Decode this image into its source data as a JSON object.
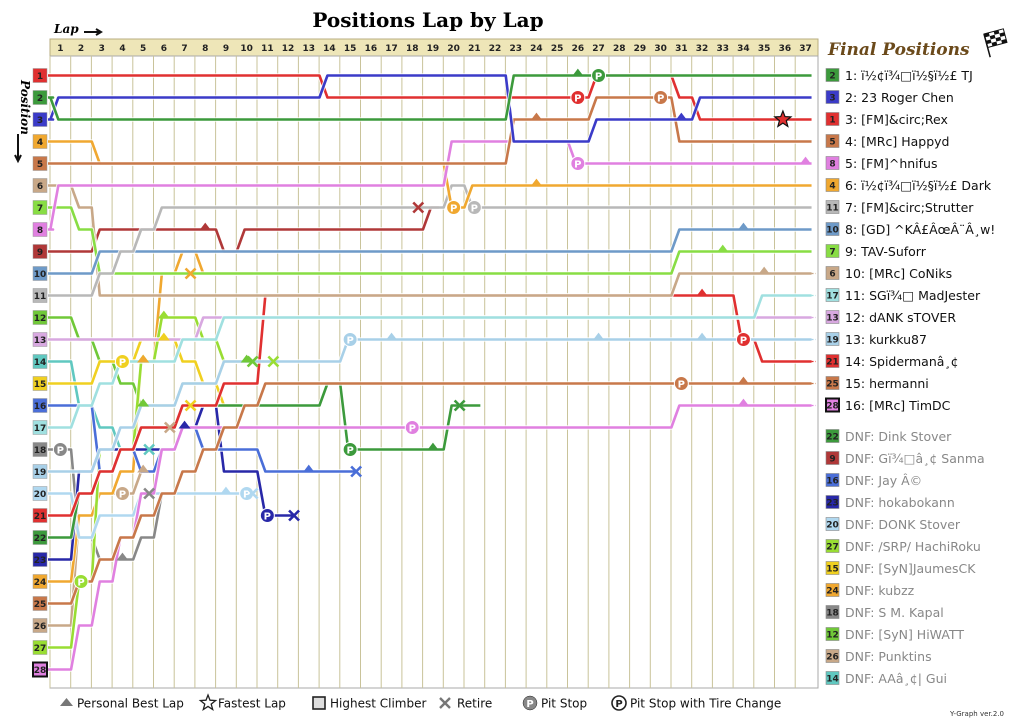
{
  "chart_data": {
    "type": "line",
    "title": "Positions Lap by Lap",
    "xlabel": "Lap",
    "ylabel": "Position",
    "laps": [
      1,
      2,
      3,
      4,
      5,
      6,
      7,
      8,
      9,
      10,
      11,
      12,
      13,
      14,
      15,
      16,
      17,
      18,
      19,
      20,
      21,
      22,
      23,
      24,
      25,
      26,
      27,
      28,
      29,
      30,
      31,
      32,
      33,
      34,
      35,
      36,
      37
    ],
    "positions": [
      1,
      2,
      3,
      4,
      5,
      6,
      7,
      8,
      9,
      10,
      11,
      12,
      13,
      14,
      15,
      16,
      17,
      18,
      19,
      20,
      21,
      22,
      23,
      24,
      25,
      26,
      27,
      28
    ],
    "final_positions_title": "Final Positions",
    "series": [
      {
        "start": 2,
        "color": "#3c9a3c",
        "label": "1: ï½¢ï¾□ï½§ï½£ TJ",
        "pos": [
          3,
          3,
          3,
          3,
          3,
          3,
          3,
          3,
          3,
          3,
          3,
          3,
          3,
          3,
          3,
          3,
          3,
          3,
          3,
          3,
          3,
          3,
          1,
          1,
          1,
          1,
          1,
          1,
          1,
          1,
          1,
          1,
          1,
          1,
          1,
          1,
          1
        ],
        "pit": [
          27
        ],
        "pbl": [
          26
        ]
      },
      {
        "start": 3,
        "color": "#3b3bc8",
        "label": "2: 23 Roger Chen",
        "pos": [
          2,
          2,
          2,
          2,
          2,
          2,
          2,
          2,
          2,
          2,
          2,
          2,
          2,
          1,
          1,
          1,
          1,
          1,
          1,
          1,
          1,
          1,
          4,
          4,
          4,
          4,
          3,
          3,
          3,
          3,
          3,
          2,
          2,
          2,
          2,
          2,
          2
        ],
        "pbl": [
          31
        ]
      },
      {
        "start": 1,
        "color": "#e03030",
        "label": "3: [FM]&circ;Rex",
        "pos": [
          1,
          1,
          1,
          1,
          1,
          1,
          1,
          1,
          1,
          1,
          1,
          1,
          1,
          2,
          2,
          2,
          2,
          2,
          2,
          2,
          2,
          2,
          2,
          2,
          2,
          2,
          1,
          1,
          1,
          1,
          2,
          3,
          3,
          3,
          3,
          3,
          3
        ],
        "pit": [
          26
        ],
        "fastest": [
          36
        ]
      },
      {
        "start": 5,
        "color": "#c8784a",
        "label": "4: [MRc] Happyd",
        "pos": [
          5,
          5,
          5,
          5,
          5,
          5,
          5,
          5,
          5,
          5,
          5,
          5,
          5,
          5,
          5,
          5,
          5,
          5,
          5,
          5,
          5,
          5,
          3,
          3,
          3,
          3,
          2,
          2,
          2,
          2,
          4,
          4,
          4,
          4,
          4,
          4,
          4
        ],
        "pit": [
          30
        ],
        "pbl": [
          24
        ]
      },
      {
        "start": 8,
        "color": "#e080e0",
        "label": "5: [FM]^hnifus",
        "pos": [
          6,
          6,
          6,
          6,
          6,
          6,
          6,
          6,
          6,
          6,
          6,
          6,
          6,
          6,
          6,
          6,
          6,
          6,
          6,
          4,
          4,
          4,
          4,
          4,
          4,
          5,
          5,
          5,
          5,
          5,
          5,
          5,
          5,
          5,
          5,
          5,
          5
        ],
        "pit": [
          26
        ],
        "pbl": [
          37
        ]
      },
      {
        "start": 4,
        "color": "#f0a830",
        "label": "6: ï½¢ï¾□ï½§ï½£ Dark",
        "pos": [
          4,
          4,
          5,
          5,
          5,
          5,
          5,
          5,
          5,
          5,
          5,
          5,
          5,
          5,
          5,
          5,
          5,
          5,
          5,
          7,
          6,
          6,
          6,
          6,
          6,
          6,
          6,
          6,
          6,
          6,
          6,
          6,
          6,
          6,
          6,
          6,
          6
        ],
        "pit": [
          20
        ],
        "pbl": [
          24
        ]
      },
      {
        "start": 11,
        "color": "#b8b8b8",
        "label": "7: [FM]&circ;Strutter",
        "pos": [
          11,
          11,
          10,
          9,
          8,
          7,
          7,
          7,
          7,
          7,
          7,
          7,
          7,
          7,
          7,
          7,
          7,
          7,
          7,
          6,
          7,
          7,
          7,
          7,
          7,
          7,
          7,
          7,
          7,
          7,
          7,
          7,
          7,
          7,
          7,
          7,
          7
        ],
        "pit": [
          21
        ]
      },
      {
        "start": 10,
        "color": "#6e9ac8",
        "label": "8: [GD] ^KÂ£ÂœÂ¨Â¸w!",
        "pos": [
          10,
          10,
          9,
          9,
          9,
          9,
          9,
          9,
          9,
          9,
          9,
          9,
          9,
          9,
          9,
          9,
          9,
          9,
          9,
          9,
          9,
          9,
          9,
          9,
          9,
          9,
          9,
          9,
          9,
          9,
          8,
          8,
          8,
          8,
          8,
          8,
          8
        ],
        "pbl": [
          34
        ]
      },
      {
        "start": 7,
        "color": "#88dd44",
        "label": "9: TAV-Suforr",
        "pos": [
          7,
          8,
          10,
          10,
          10,
          10,
          10,
          10,
          10,
          10,
          10,
          10,
          10,
          10,
          10,
          10,
          10,
          10,
          10,
          10,
          10,
          10,
          10,
          10,
          10,
          10,
          10,
          10,
          10,
          10,
          9,
          9,
          9,
          9,
          9,
          9,
          9
        ],
        "pbl": [
          33
        ]
      },
      {
        "start": 6,
        "color": "#c8a888",
        "label": "10: [MRc] CoNiks",
        "pos": [
          6,
          7,
          11,
          11,
          11,
          11,
          11,
          11,
          11,
          11,
          11,
          11,
          11,
          11,
          11,
          11,
          11,
          11,
          11,
          11,
          11,
          11,
          11,
          11,
          11,
          11,
          11,
          11,
          11,
          11,
          10,
          10,
          10,
          10,
          10,
          10,
          10
        ],
        "pbl": [
          35
        ],
        "dnf_tail": true
      },
      {
        "start": 17,
        "color": "#a0e0e0",
        "label": "11: SGï¾□ MadJester",
        "pos": [
          17,
          16,
          15,
          14,
          14,
          14,
          13,
          13,
          12,
          12,
          12,
          12,
          12,
          12,
          12,
          12,
          12,
          12,
          12,
          12,
          12,
          12,
          12,
          12,
          12,
          12,
          12,
          12,
          12,
          12,
          12,
          12,
          12,
          12,
          11,
          11,
          11
        ],
        "dnf_tail": true
      },
      {
        "start": 13,
        "color": "#d8a8e0",
        "label": "12: dANK sTOVER",
        "pos": [
          13,
          13,
          13,
          13,
          13,
          13,
          13,
          12,
          12,
          12,
          12,
          12,
          12,
          12,
          12,
          12,
          12,
          12,
          12,
          12,
          12,
          12,
          12,
          12,
          12,
          12,
          12,
          12,
          12,
          12,
          12,
          12,
          12,
          12,
          12,
          12,
          12
        ],
        "dnf_tail": true
      },
      {
        "start": 19,
        "color": "#a8d0e8",
        "label": "13: kurkku87",
        "pos": [
          19,
          19,
          18,
          17,
          16,
          16,
          15,
          15,
          14,
          14,
          14,
          14,
          14,
          14,
          13,
          13,
          13,
          13,
          13,
          13,
          13,
          13,
          13,
          13,
          13,
          13,
          13,
          13,
          13,
          13,
          13,
          13,
          13,
          13,
          13,
          13,
          13
        ],
        "pit": [
          15
        ],
        "pbl": [
          17,
          27,
          32
        ],
        "dnf_tail": true
      },
      {
        "start": 21,
        "color": "#e03030",
        "label": "14: Spidermanâ¸¢",
        "pos": [
          21,
          20,
          19,
          18,
          17,
          17,
          16,
          16,
          15,
          15,
          11,
          11,
          11,
          11,
          11,
          11,
          11,
          11,
          11,
          11,
          11,
          11,
          11,
          11,
          11,
          11,
          11,
          11,
          11,
          11,
          11,
          11,
          11,
          13,
          14,
          14,
          14
        ],
        "pit": [
          34
        ],
        "pbl": [
          32
        ],
        "dnf_tail": true
      },
      {
        "start": 25,
        "color": "#c8784a",
        "label": "15: hermanni",
        "pos": [
          25,
          24,
          23,
          22,
          21,
          20,
          19,
          18,
          17,
          16,
          15,
          15,
          15,
          15,
          15,
          15,
          15,
          15,
          15,
          15,
          15,
          15,
          15,
          15,
          15,
          15,
          15,
          15,
          15,
          15,
          15,
          15,
          15,
          15,
          15,
          15,
          15
        ],
        "pit": [
          31
        ],
        "pbl": [
          34
        ],
        "dnf_tail": true
      },
      {
        "start": 28,
        "color": "#e080e0",
        "label": "16: [MRc] TimDC",
        "pos": [
          28,
          26,
          24,
          22,
          20,
          18,
          17,
          17,
          17,
          17,
          17,
          17,
          17,
          17,
          17,
          17,
          17,
          17,
          17,
          17,
          17,
          17,
          17,
          17,
          17,
          17,
          17,
          17,
          17,
          17,
          16,
          16,
          16,
          16,
          16,
          16,
          16
        ],
        "pit": [
          18
        ],
        "pbl": [
          34
        ],
        "dnf_tail": true
      }
    ],
    "dnf": [
      {
        "start": 22,
        "color": "#3c9a3c",
        "label": "DNF: Dink Stover",
        "pos": [
          22,
          20,
          19,
          18,
          17,
          17,
          16,
          16,
          16,
          16,
          16,
          16,
          16,
          15,
          18,
          18,
          18,
          18,
          18,
          16,
          16
        ],
        "pit": [
          15
        ],
        "pbl": [
          19
        ],
        "retire": [
          20
        ]
      },
      {
        "start": 9,
        "color": "#b03838",
        "label": "DNF: Gï¾□â¸¢ Sanma",
        "pos": [
          9,
          9,
          8,
          8,
          8,
          8,
          8,
          8,
          9,
          8,
          8,
          8,
          8,
          8,
          8,
          8,
          8,
          8,
          7
        ],
        "pbl": [
          8
        ],
        "retire": [
          18
        ]
      },
      {
        "start": 16,
        "color": "#4a6ed8",
        "label": "DNF: Jay Â©",
        "pos": [
          16,
          16,
          19,
          18,
          19,
          18,
          17,
          18,
          18,
          18,
          19,
          19,
          19,
          19,
          19
        ],
        "pbl": [
          13
        ],
        "retire": [
          15
        ]
      },
      {
        "start": 23,
        "color": "#2828a8",
        "label": "DNF: hokabokann",
        "pos": [
          23,
          19,
          18,
          18,
          18,
          18,
          17,
          16,
          19,
          19,
          21,
          21
        ],
        "pit": [
          11
        ],
        "pbl": [
          7
        ],
        "retire": [
          12
        ]
      },
      {
        "start": 20,
        "color": "#b0d8f0",
        "label": "DNF: DONK Stover",
        "pos": [
          20,
          22,
          21,
          21,
          20,
          20,
          20,
          20,
          20,
          20
        ],
        "pit": [
          10
        ],
        "pbl": [
          9
        ],
        "retire": [
          10
        ]
      },
      {
        "start": 27,
        "color": "#99dd33",
        "label": "DNF: /SRP/ HachiRoku",
        "pos": [
          27,
          24,
          18,
          18,
          14,
          12,
          12,
          13,
          14,
          14,
          14
        ],
        "pit": [
          2
        ],
        "pbl": [
          5,
          6
        ],
        "retire": [
          11
        ]
      },
      {
        "start": 15,
        "color": "#f0d020",
        "label": "DNF: [SyN]JaumesCK",
        "pos": [
          15,
          15,
          14,
          14,
          13,
          13,
          14,
          15,
          16,
          16
        ],
        "pit": [
          4
        ],
        "pbl": [
          6
        ],
        "retire": [
          7
        ]
      },
      {
        "start": 24,
        "color": "#f0a830",
        "label": "DNF: kubzz",
        "pos": [
          24,
          21,
          20,
          19,
          14,
          10,
          9,
          10,
          10,
          10
        ],
        "pbl": [
          5
        ],
        "retire": [
          7
        ]
      },
      {
        "start": 18,
        "color": "#888888",
        "label": "DNF: S M. Kapal",
        "pos": [
          18,
          22,
          23,
          23,
          22,
          20
        ],
        "pit": [
          1
        ],
        "pbl": [
          4
        ],
        "retire": [
          5
        ]
      },
      {
        "start": 12,
        "color": "#70c838",
        "label": "DNF: [SyN] HiWATT",
        "pos": [
          12,
          13,
          14,
          15,
          16,
          16,
          15,
          15,
          14,
          14
        ],
        "pbl": [
          5,
          10
        ],
        "retire": [
          10
        ]
      },
      {
        "start": 26,
        "color": "#c8a888",
        "label": "DNF: Punktins",
        "pos": [
          26,
          21,
          20,
          20,
          19,
          18,
          17,
          17,
          17,
          17
        ],
        "pit": [
          4
        ],
        "pbl": [
          5
        ],
        "retire": [
          6
        ]
      },
      {
        "start": 14,
        "color": "#60c8c0",
        "label": "DNF: AAâ¸¢| Gui",
        "pos": [
          14,
          16,
          17,
          18,
          18
        ],
        "retire": [
          5
        ]
      }
    ],
    "highest_climber_start": 28,
    "legend": [
      {
        "icon": "personal-best-icon",
        "label": "Personal Best Lap"
      },
      {
        "icon": "fastest-lap-icon",
        "label": "Fastest Lap"
      },
      {
        "icon": "highest-climber-icon",
        "label": "Highest Climber"
      },
      {
        "icon": "retire-icon",
        "label": "Retire"
      },
      {
        "icon": "pit-stop-icon",
        "label": "Pit Stop"
      },
      {
        "icon": "pit-stop-tire-icon",
        "label": "Pit Stop with Tire Change"
      }
    ],
    "footer": "Y-Graph ver.2.0"
  }
}
